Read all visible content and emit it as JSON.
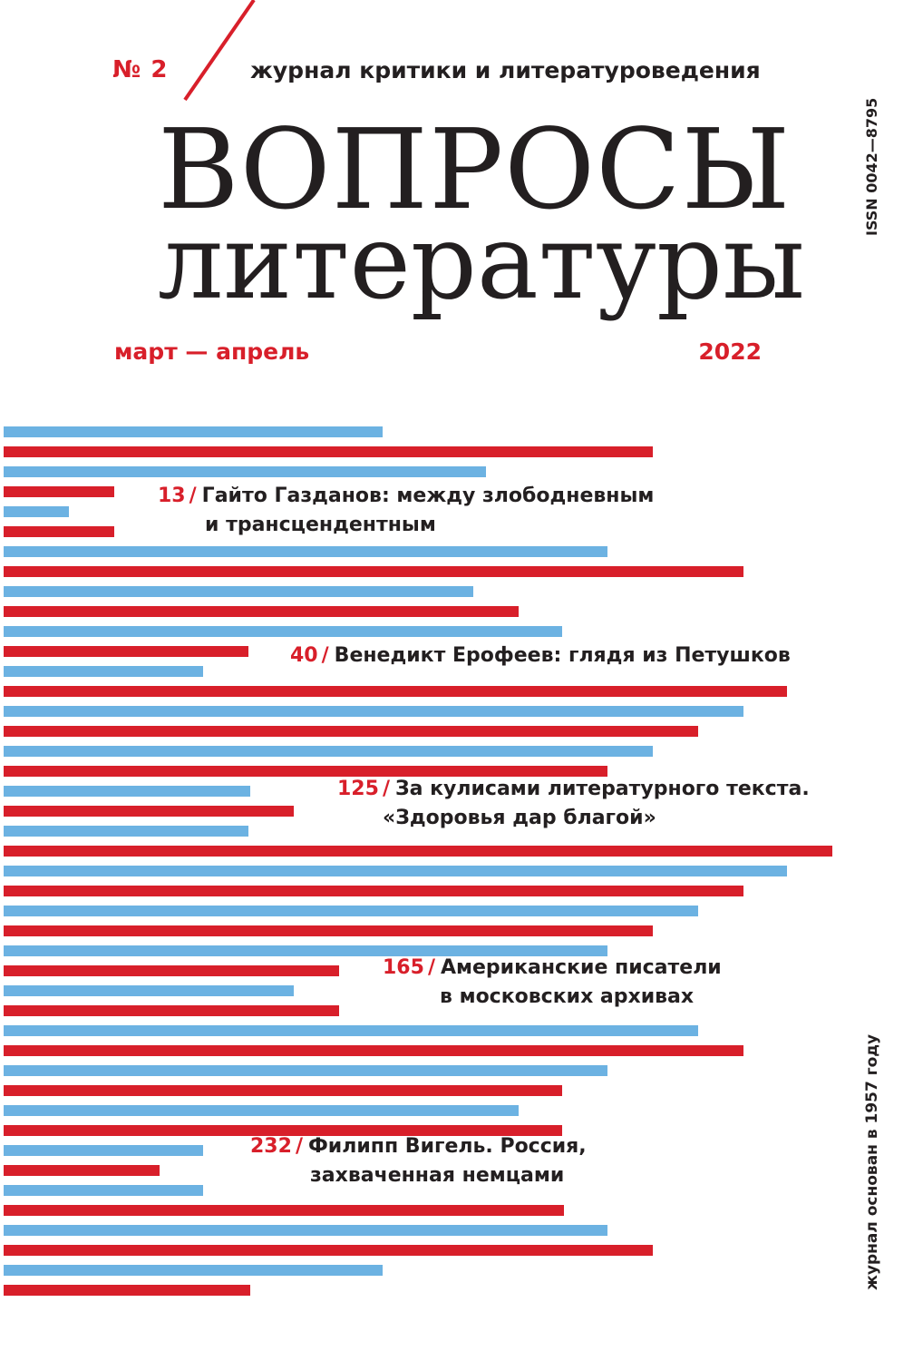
{
  "issue_number": "№ 2",
  "tagline": "журнал критики и литературоведения",
  "title_line1": "ВОПРОСЫ",
  "title_line2": "литературы",
  "period": "март — апрель",
  "year": "2022",
  "issn": "ISSN 0042—8795",
  "founded": "журнал основан в 1957 году",
  "colors": {
    "accent_red": "#d81f2a",
    "accent_blue": "#6cb2e2",
    "ink": "#231f20",
    "background": "#ffffff"
  },
  "articles": [
    {
      "page": "13",
      "slash": "/",
      "line1": "Гайто Газданов: между злободневным",
      "line2": "и трансцендентным"
    },
    {
      "page": "40",
      "slash": "/",
      "line1": "Венедикт Ерофеев: глядя из Петушков",
      "line2": ""
    },
    {
      "page": "125",
      "slash": "/",
      "line1": "За кулисами литературного текста.",
      "line2": "«Здоровья дар благой»"
    },
    {
      "page": "165",
      "slash": "/",
      "line1": "Американские писатели",
      "line2": "в московских архивах"
    },
    {
      "page": "232",
      "slash": "/",
      "line1": "Филипп Вигель. Россия,",
      "line2": "захваченная немцами"
    }
  ]
}
